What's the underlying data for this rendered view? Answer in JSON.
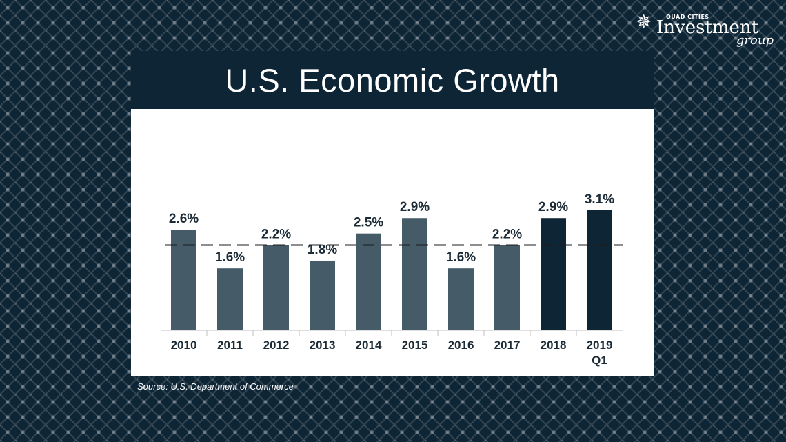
{
  "logo": {
    "small_text": "QUAD CITIES",
    "main_text": "Investment",
    "sub_text": "group",
    "icon": "star-logo-icon"
  },
  "title": "U.S. Economic Growth",
  "source": "Source: U.S. Department of Commerce",
  "colors": {
    "background": "#0e2536",
    "bar_regular": "#455b68",
    "bar_highlight": "#0e2536",
    "text": "#1c2b36"
  },
  "chart_data": {
    "type": "bar",
    "title": "U.S. Economic Growth",
    "xlabel": "",
    "ylabel": "",
    "categories": [
      [
        "2010"
      ],
      [
        "2011"
      ],
      [
        "2012"
      ],
      [
        "2013"
      ],
      [
        "2014"
      ],
      [
        "2015"
      ],
      [
        "2016"
      ],
      [
        "2017"
      ],
      [
        "2018"
      ],
      [
        "2019",
        "Q1"
      ]
    ],
    "values": [
      2.6,
      1.6,
      2.2,
      1.8,
      2.5,
      2.9,
      1.6,
      2.2,
      2.9,
      3.1
    ],
    "labels": [
      "2.6%",
      "1.6%",
      "2.2%",
      "1.8%",
      "2.5%",
      "2.9%",
      "1.6%",
      "2.2%",
      "2.9%",
      "3.1%"
    ],
    "highlighted": [
      false,
      false,
      false,
      false,
      false,
      false,
      false,
      false,
      true,
      true
    ],
    "reference_line": {
      "value": 2.2,
      "style": "dashed"
    },
    "ylim": [
      0,
      3.1
    ],
    "grid": false,
    "legend": "none"
  }
}
